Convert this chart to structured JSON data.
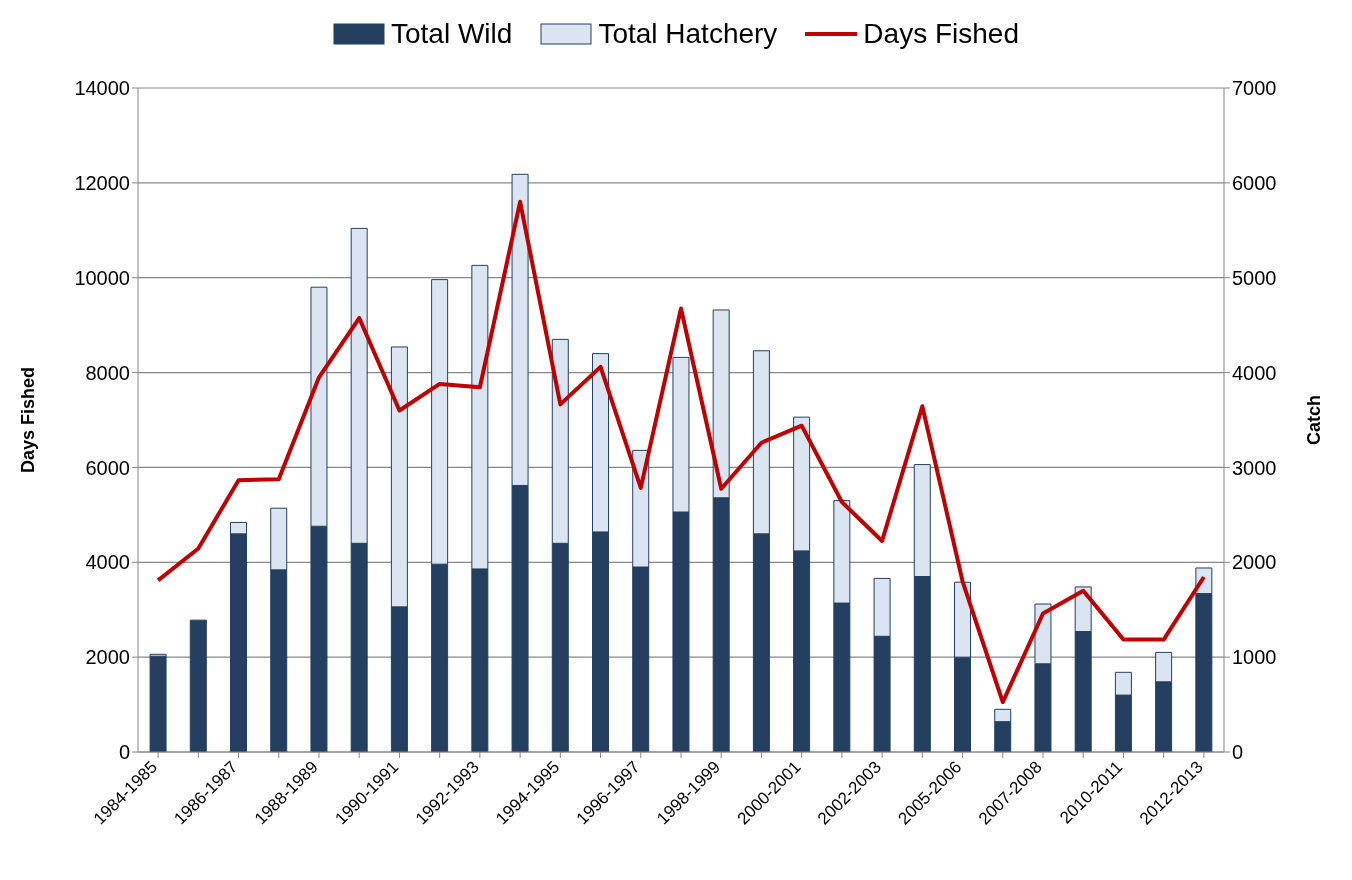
{
  "chart_data": {
    "type": "bar",
    "stacked": true,
    "categories": [
      "1984-1985",
      null,
      "1986-1987",
      null,
      "1988-1989",
      null,
      "1990-1991",
      null,
      "1992-1993",
      null,
      "1994-1995",
      null,
      "1996-1997",
      null,
      "1998-1999",
      null,
      "2000-2001",
      null,
      "2002-2003",
      null,
      "2005-2006",
      null,
      "2007-2008",
      null,
      "2010-2011",
      null,
      "2012-2013"
    ],
    "ylabel": "Days Fished",
    "y2label": "Catch",
    "ylim": [
      0,
      14000
    ],
    "yticks": [
      0,
      2000,
      4000,
      6000,
      8000,
      10000,
      12000,
      14000
    ],
    "y2lim": [
      0,
      7000
    ],
    "y2ticks": [
      0,
      1000,
      2000,
      3000,
      4000,
      5000,
      6000,
      7000
    ],
    "grid": "y",
    "legend": "top",
    "series": [
      {
        "name": "Total Wild",
        "axis": "y2",
        "color": "#243f60",
        "values": [
          1010,
          1390,
          2300,
          1920,
          2380,
          2200,
          1530,
          1980,
          1930,
          2810,
          2200,
          2320,
          1950,
          2530,
          2680,
          2300,
          2120,
          1570,
          1220,
          1850,
          1000,
          320,
          930,
          1270,
          600,
          740,
          1670
        ]
      },
      {
        "name": "Total Hatchery",
        "axis": "y2",
        "color": "#dbe5f1",
        "values": [
          20,
          0,
          120,
          650,
          2520,
          3320,
          2740,
          3000,
          3200,
          3280,
          2150,
          1880,
          1230,
          1630,
          1980,
          1930,
          1410,
          1080,
          610,
          1180,
          790,
          130,
          630,
          470,
          240,
          310,
          270
        ]
      },
      {
        "name": "Days Fished",
        "type": "line",
        "color": "#c00000",
        "marker": "none",
        "values": [
          3620,
          4290,
          5730,
          5750,
          7900,
          9150,
          7200,
          7760,
          7690,
          11600,
          7330,
          8120,
          5570,
          9350,
          5550,
          6520,
          6880,
          5270,
          4450,
          7290,
          3600,
          1050,
          2920,
          3400,
          2370,
          2370,
          3690
        ]
      }
    ]
  }
}
